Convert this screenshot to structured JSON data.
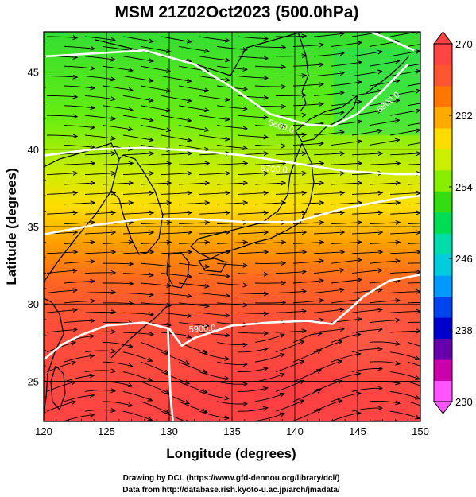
{
  "title": "MSM 21Z02Oct2023 (500.0hPa)",
  "x_axis": {
    "label": "Longitude (degrees)",
    "ticks": [
      "120",
      "125",
      "130",
      "135",
      "140",
      "145",
      "150"
    ]
  },
  "y_axis": {
    "label": "Latitude  (degrees)",
    "ticks": [
      "45",
      "40",
      "35",
      "30",
      "25"
    ]
  },
  "colorbar": {
    "ticks": [
      "270",
      "262",
      "254",
      "246",
      "238",
      "230"
    ],
    "colors_bottom_to_top": [
      "#ff55ff",
      "#cc00aa",
      "#6600aa",
      "#0000cc",
      "#0044ee",
      "#0099ff",
      "#00ccdd",
      "#00ddaa",
      "#00dd55",
      "#33dd11",
      "#88ee00",
      "#ccee00",
      "#ffdd00",
      "#ffaa00",
      "#ff7700",
      "#ff5533",
      "#ff4444"
    ]
  },
  "contour_labels": [
    "5600.0",
    "5700.0",
    "5900.0",
    "5800.0"
  ],
  "credits": {
    "line1": "Drawing by DCL (https://www.gfd-dennou.org/library/dcl/)",
    "line2": "Data from http://database.rish.kyoto-u.ac.jp/arch/jmadata/"
  },
  "chart_data": {
    "type": "heatmap",
    "title": "MSM 21Z02Oct2023 (500.0hPa)",
    "xlabel": "Longitude (degrees)",
    "ylabel": "Latitude  (degrees)",
    "xlim": [
      120,
      150
    ],
    "ylim": [
      22.4,
      47.6
    ],
    "color_range": [
      230,
      270
    ],
    "colorbar_ticks": [
      270,
      262,
      254,
      246,
      238,
      230
    ],
    "temperature_bands_by_latitude": [
      {
        "lat": 47,
        "value": 254
      },
      {
        "lat": 43,
        "value": 256
      },
      {
        "lat": 40,
        "value": 258
      },
      {
        "lat": 37,
        "value": 260
      },
      {
        "lat": 35,
        "value": 262
      },
      {
        "lat": 33,
        "value": 264
      },
      {
        "lat": 31,
        "value": 266
      },
      {
        "lat": 28,
        "value": 268
      },
      {
        "lat": 24,
        "value": 269
      }
    ],
    "height_contours": [
      {
        "label": "5600.0",
        "points": [
          [
            120,
            46
          ],
          [
            124,
            46.2
          ],
          [
            128,
            46.4
          ],
          [
            132,
            45.5
          ],
          [
            135,
            44
          ],
          [
            138,
            42.3
          ],
          [
            141,
            41.6
          ],
          [
            143,
            41.5
          ],
          [
            145,
            42.3
          ],
          [
            147,
            43.8
          ],
          [
            149,
            45.5
          ]
        ]
      },
      {
        "label": "5700.0",
        "points": [
          [
            120,
            39.6
          ],
          [
            124,
            40
          ],
          [
            128,
            40.1
          ],
          [
            132,
            39.9
          ],
          [
            136,
            39.6
          ],
          [
            140,
            39.1
          ],
          [
            144,
            38.6
          ],
          [
            148,
            38.4
          ],
          [
            150,
            38.4
          ]
        ]
      },
      {
        "label": "5800.0",
        "points": [
          [
            120,
            34.5
          ],
          [
            124,
            35.1
          ],
          [
            128,
            35.5
          ],
          [
            132,
            35.5
          ],
          [
            136,
            35.3
          ],
          [
            140,
            35.3
          ],
          [
            144,
            36.2
          ],
          [
            148,
            36.8
          ],
          [
            150,
            37
          ]
        ]
      },
      {
        "label": "5900.0",
        "points": [
          [
            120,
            26.4
          ],
          [
            121.5,
            27.4
          ],
          [
            123,
            28
          ],
          [
            125,
            28.6
          ],
          [
            128,
            28.8
          ],
          [
            130,
            28.4
          ],
          [
            131,
            27.3
          ],
          [
            132,
            27.8
          ],
          [
            135,
            28.6
          ],
          [
            138,
            28.8
          ],
          [
            141,
            28.9
          ],
          [
            143,
            28.7
          ],
          [
            144,
            29.4
          ],
          [
            145.5,
            30.5
          ],
          [
            147.5,
            31.5
          ],
          [
            150,
            31.9
          ]
        ]
      },
      {
        "label": "",
        "points": [
          [
            129.9,
            28.4
          ],
          [
            130,
            26
          ],
          [
            130.1,
            24
          ],
          [
            130.3,
            22.4
          ]
        ]
      },
      {
        "label": "",
        "points": [
          [
            146,
            47.6
          ],
          [
            147,
            47.3
          ],
          [
            149.5,
            46.4
          ]
        ]
      }
    ]
  }
}
